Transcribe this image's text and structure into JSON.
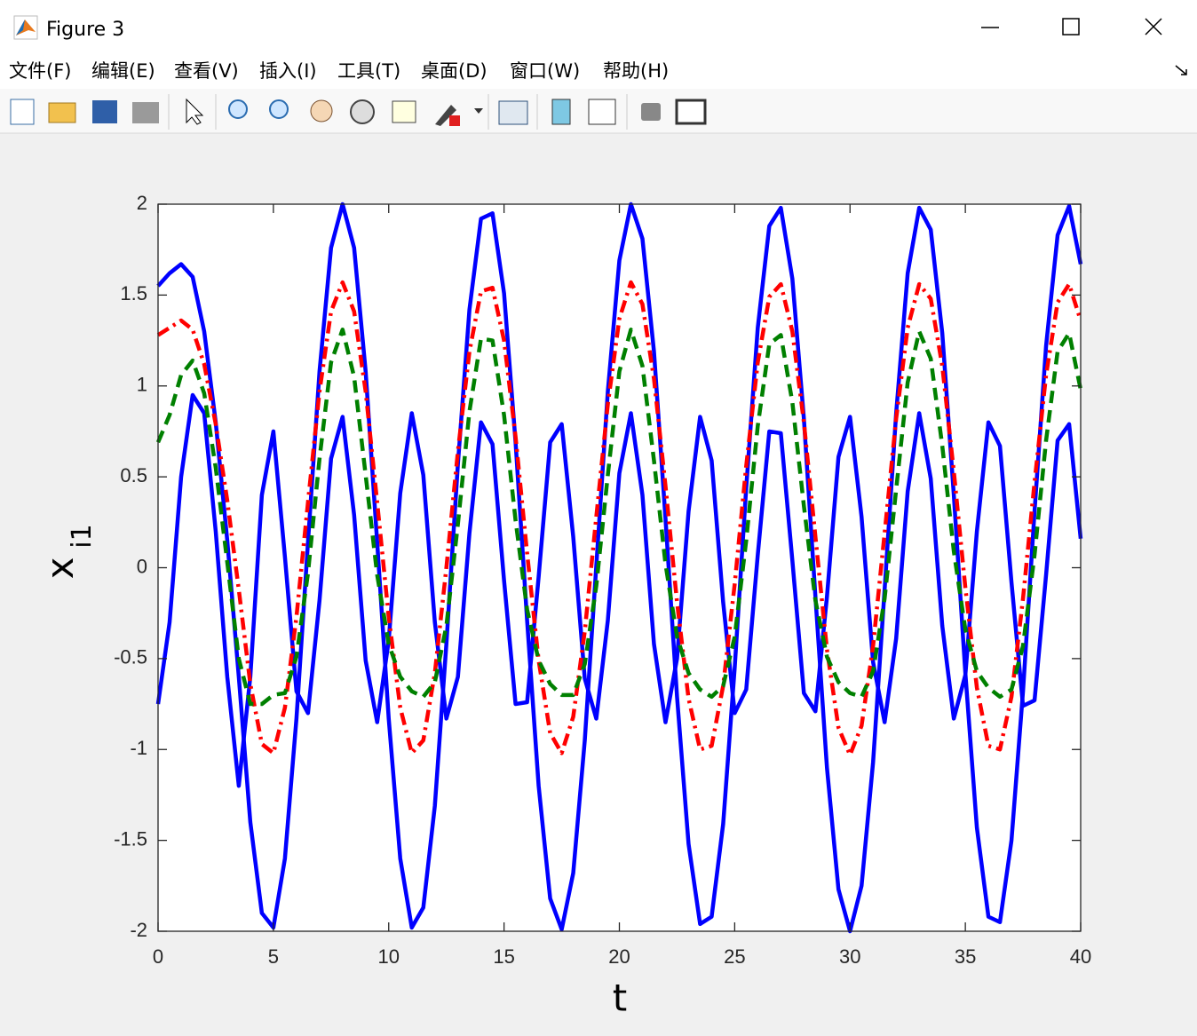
{
  "window": {
    "title": "Figure 3",
    "menu": [
      "文件(F)",
      "编辑(E)",
      "查看(V)",
      "插入(I)",
      "工具(T)",
      "桌面(D)",
      "窗口(W)",
      "帮助(H)"
    ]
  },
  "chart_data": {
    "type": "line",
    "xlabel": "t",
    "ylabel": {
      "base": "x",
      "sub": "i1"
    },
    "x": [
      0,
      0.5,
      1,
      1.5,
      2,
      2.5,
      3,
      3.5,
      4,
      4.5,
      5,
      5.5,
      6,
      6.5,
      7,
      7.5,
      8,
      8.5,
      9,
      9.5,
      10,
      10.5,
      11,
      11.5,
      12,
      12.5,
      13,
      13.5,
      14,
      14.5,
      15,
      15.5,
      16,
      16.5,
      17,
      17.5,
      18,
      18.5,
      19,
      19.5,
      20,
      20.5,
      21,
      21.5,
      22,
      22.5,
      23,
      23.5,
      24,
      24.5,
      25,
      25.5,
      26,
      26.5,
      27,
      27.5,
      28,
      28.5,
      29,
      29.5,
      30,
      30.5,
      31,
      31.5,
      32,
      32.5,
      33,
      33.5,
      34,
      34.5,
      35,
      35.5,
      36,
      36.5,
      37,
      37.5,
      38,
      38.5,
      39,
      39.5,
      40
    ],
    "series": [
      {
        "color": "#0000ff",
        "linestyle": "-",
        "values": [
          1.55,
          1.62,
          1.67,
          1.6,
          1.3,
          0.8,
          0.15,
          -0.6,
          -1.4,
          -1.9,
          -1.98,
          -1.6,
          -0.83,
          0.14,
          1.08,
          1.76,
          2,
          1.76,
          1.08,
          0.14,
          -0.83,
          -1.6,
          -1.98,
          -1.87,
          -1.31,
          -0.42,
          0.57,
          1.42,
          1.92,
          1.95,
          1.51,
          0.69,
          -0.29,
          -1.2,
          -1.82,
          -1.99,
          -1.68,
          -0.95,
          0.01,
          0.97,
          1.69,
          2,
          1.81,
          1.19,
          0.27,
          -0.71,
          -1.52,
          -1.96,
          -1.92,
          -1.41,
          -0.55,
          0.44,
          1.32,
          1.88,
          1.98,
          1.59,
          0.82,
          -0.16,
          -1.1,
          -1.77,
          -2,
          -1.75,
          -1.07,
          -0.12,
          0.85,
          1.62,
          1.98,
          1.86,
          1.29,
          0.4,
          -0.58,
          -1.43,
          -1.92,
          -1.95,
          -1.5,
          -0.68,
          0.31,
          1.22,
          1.83,
          1.99,
          1.67
        ]
      },
      {
        "color": "#0000ff",
        "linestyle": "-",
        "values": [
          -0.75,
          -0.3,
          0.5,
          0.95,
          0.85,
          0.2,
          -0.6,
          -1.2,
          -0.6,
          0.4,
          0.75,
          0.06,
          -0.68,
          -0.8,
          -0.18,
          0.6,
          0.83,
          0.29,
          -0.51,
          -0.85,
          -0.4,
          0.41,
          0.85,
          0.51,
          -0.3,
          -0.83,
          -0.6,
          0.19,
          0.8,
          0.68,
          -0.07,
          -0.75,
          -0.74,
          -0.05,
          0.69,
          0.79,
          0.17,
          -0.61,
          -0.83,
          -0.29,
          0.52,
          0.85,
          0.4,
          -0.42,
          -0.85,
          -0.5,
          0.31,
          0.83,
          0.59,
          -0.19,
          -0.8,
          -0.67,
          0.07,
          0.75,
          0.74,
          0.04,
          -0.69,
          -0.79,
          -0.16,
          0.61,
          0.83,
          0.28,
          -0.52,
          -0.85,
          -0.39,
          0.42,
          0.85,
          0.49,
          -0.32,
          -0.83,
          -0.59,
          0.2,
          0.8,
          0.67,
          -0.08,
          -0.76,
          -0.73,
          -0.04,
          0.7,
          0.79,
          0.16
        ]
      },
      {
        "color": "#ff0000",
        "linestyle": "-.",
        "values": [
          1.28,
          1.32,
          1.36,
          1.31,
          1.12,
          0.79,
          0.37,
          -0.12,
          -0.64,
          -0.97,
          -1.02,
          -0.77,
          -0.27,
          0.36,
          0.97,
          1.41,
          1.57,
          1.41,
          0.97,
          0.36,
          -0.27,
          -0.77,
          -1.02,
          -0.95,
          -0.58,
          0,
          0.64,
          1.19,
          1.52,
          1.54,
          1.25,
          0.72,
          0.08,
          -0.51,
          -0.91,
          -1.02,
          -0.82,
          -0.35,
          0.28,
          0.9,
          1.37,
          1.57,
          1.45,
          1.04,
          0.45,
          -0.19,
          -0.72,
          -1,
          -0.98,
          -0.65,
          -0.09,
          0.56,
          1.13,
          1.49,
          1.56,
          1.3,
          0.8,
          0.17,
          -0.45,
          -0.88,
          -1.03,
          -0.87,
          -0.43,
          0.19,
          0.82,
          1.32,
          1.56,
          1.48,
          1.11,
          0.53,
          -0.11,
          -0.66,
          -0.98,
          -1,
          -0.71,
          -0.17,
          0.47,
          1.06,
          1.46,
          1.56,
          1.36
        ]
      },
      {
        "color": "#008000",
        "linestyle": "--",
        "values": [
          0.69,
          0.84,
          1.06,
          1.14,
          0.96,
          0.55,
          0.03,
          -0.5,
          -0.75,
          -0.75,
          -0.7,
          -0.69,
          -0.49,
          -0.03,
          0.6,
          1.13,
          1.31,
          1.05,
          0.51,
          -0.04,
          -0.42,
          -0.6,
          -0.68,
          -0.71,
          -0.63,
          -0.32,
          0.24,
          0.86,
          1.26,
          1.25,
          0.84,
          0.26,
          -0.23,
          -0.51,
          -0.64,
          -0.7,
          -0.7,
          -0.53,
          -0.1,
          0.51,
          1.08,
          1.31,
          1.11,
          0.59,
          0.02,
          -0.38,
          -0.58,
          -0.67,
          -0.71,
          -0.65,
          -0.38,
          0.15,
          0.78,
          1.23,
          1.28,
          0.91,
          0.34,
          -0.18,
          -0.49,
          -0.63,
          -0.69,
          -0.71,
          -0.57,
          -0.17,
          0.43,
          1.02,
          1.3,
          1.15,
          0.67,
          0.09,
          -0.34,
          -0.57,
          -0.66,
          -0.71,
          -0.67,
          -0.43,
          0.07,
          0.7,
          1.19,
          1.29,
          0.98
        ]
      }
    ],
    "xlim": [
      0,
      40
    ],
    "xticks": [
      0,
      5,
      10,
      15,
      20,
      25,
      30,
      35,
      40
    ],
    "ylim": [
      -2,
      2
    ],
    "yticks": [
      -2,
      -1.5,
      -1,
      -0.5,
      0,
      0.5,
      1,
      1.5,
      2
    ]
  }
}
